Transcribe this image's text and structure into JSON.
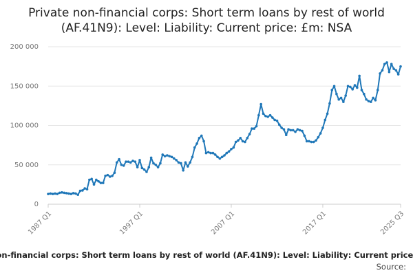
{
  "chart_data": {
    "type": "line",
    "title": "Private non-financial corps: Short term loans by rest of world (AF.41N9): Level: Liability: Current price: £m: NSA",
    "source_label": "Source:",
    "color": "#1f77b8",
    "grid": true,
    "ylim": [
      0,
      200000
    ],
    "yticks": [
      0,
      {
        "value": 50000,
        "label": "50 000"
      },
      {
        "value": 100000,
        "label": "100 000"
      },
      {
        "value": 150000,
        "label": "150 000"
      },
      {
        "value": 200000,
        "label": "200 000"
      }
    ],
    "categories": [
      "1987 Q1",
      null,
      null,
      null,
      null,
      null,
      null,
      null,
      null,
      null,
      null,
      null,
      null,
      null,
      null,
      null,
      null,
      null,
      null,
      null,
      null,
      null,
      null,
      null,
      null,
      null,
      null,
      null,
      null,
      null,
      null,
      null,
      null,
      null,
      null,
      null,
      null,
      null,
      null,
      null,
      "1997 Q1",
      null,
      null,
      null,
      null,
      null,
      null,
      null,
      null,
      null,
      null,
      null,
      null,
      null,
      null,
      null,
      null,
      null,
      null,
      null,
      null,
      null,
      null,
      null,
      null,
      null,
      null,
      null,
      null,
      null,
      null,
      null,
      null,
      null,
      null,
      null,
      null,
      null,
      null,
      null,
      "2007 Q1",
      null,
      null,
      null,
      null,
      null,
      null,
      null,
      null,
      null,
      null,
      null,
      null,
      null,
      null,
      null,
      null,
      null,
      null,
      null,
      null,
      null,
      null,
      null,
      null,
      null,
      null,
      null,
      null,
      null,
      null,
      null,
      null,
      null,
      null,
      null,
      null,
      null,
      null,
      null,
      "2017 Q1",
      null,
      null,
      null,
      null,
      null,
      null,
      null,
      null,
      null,
      null,
      null,
      null,
      null,
      null,
      null,
      null,
      null,
      null,
      null,
      null,
      null,
      null,
      null,
      null,
      null,
      null,
      null,
      null,
      null,
      null,
      null,
      null,
      null,
      "2025 Q3"
    ],
    "values": [
      13000,
      13500,
      13000,
      13500,
      13000,
      14500,
      15000,
      14500,
      14000,
      13500,
      13000,
      14000,
      13500,
      12000,
      17000,
      17500,
      20000,
      19000,
      31000,
      32000,
      25000,
      31000,
      29000,
      27000,
      27000,
      36000,
      37000,
      35000,
      36000,
      40000,
      53000,
      57000,
      50000,
      49000,
      54000,
      54000,
      53000,
      55000,
      54000,
      47000,
      56000,
      46000,
      44000,
      41000,
      47000,
      59000,
      52000,
      50000,
      47000,
      52000,
      63000,
      61000,
      62000,
      61000,
      60000,
      58000,
      56000,
      53000,
      52000,
      43000,
      53000,
      48000,
      53000,
      60000,
      72000,
      77000,
      84000,
      87000,
      80000,
      65000,
      66000,
      65000,
      65000,
      63000,
      60000,
      58000,
      60000,
      62000,
      65000,
      67000,
      70000,
      72000,
      79000,
      81000,
      84000,
      80000,
      79000,
      84000,
      89000,
      96000,
      96000,
      99000,
      113000,
      127000,
      115000,
      112000,
      111000,
      113000,
      110000,
      107000,
      106000,
      101000,
      97000,
      95000,
      88000,
      95000,
      94000,
      94000,
      92000,
      95000,
      94000,
      93000,
      87000,
      80000,
      80000,
      79000,
      79000,
      81000,
      85000,
      90000,
      97000,
      107000,
      115000,
      128000,
      145000,
      150000,
      140000,
      133000,
      135000,
      130000,
      138000,
      150000,
      149000,
      146000,
      151000,
      148000,
      163000,
      145000,
      140000,
      133000,
      131000,
      130000,
      135000,
      132000,
      145000,
      166000,
      170000,
      178000,
      180000,
      168000,
      178000,
      172000,
      170000,
      165000,
      175000
    ]
  }
}
